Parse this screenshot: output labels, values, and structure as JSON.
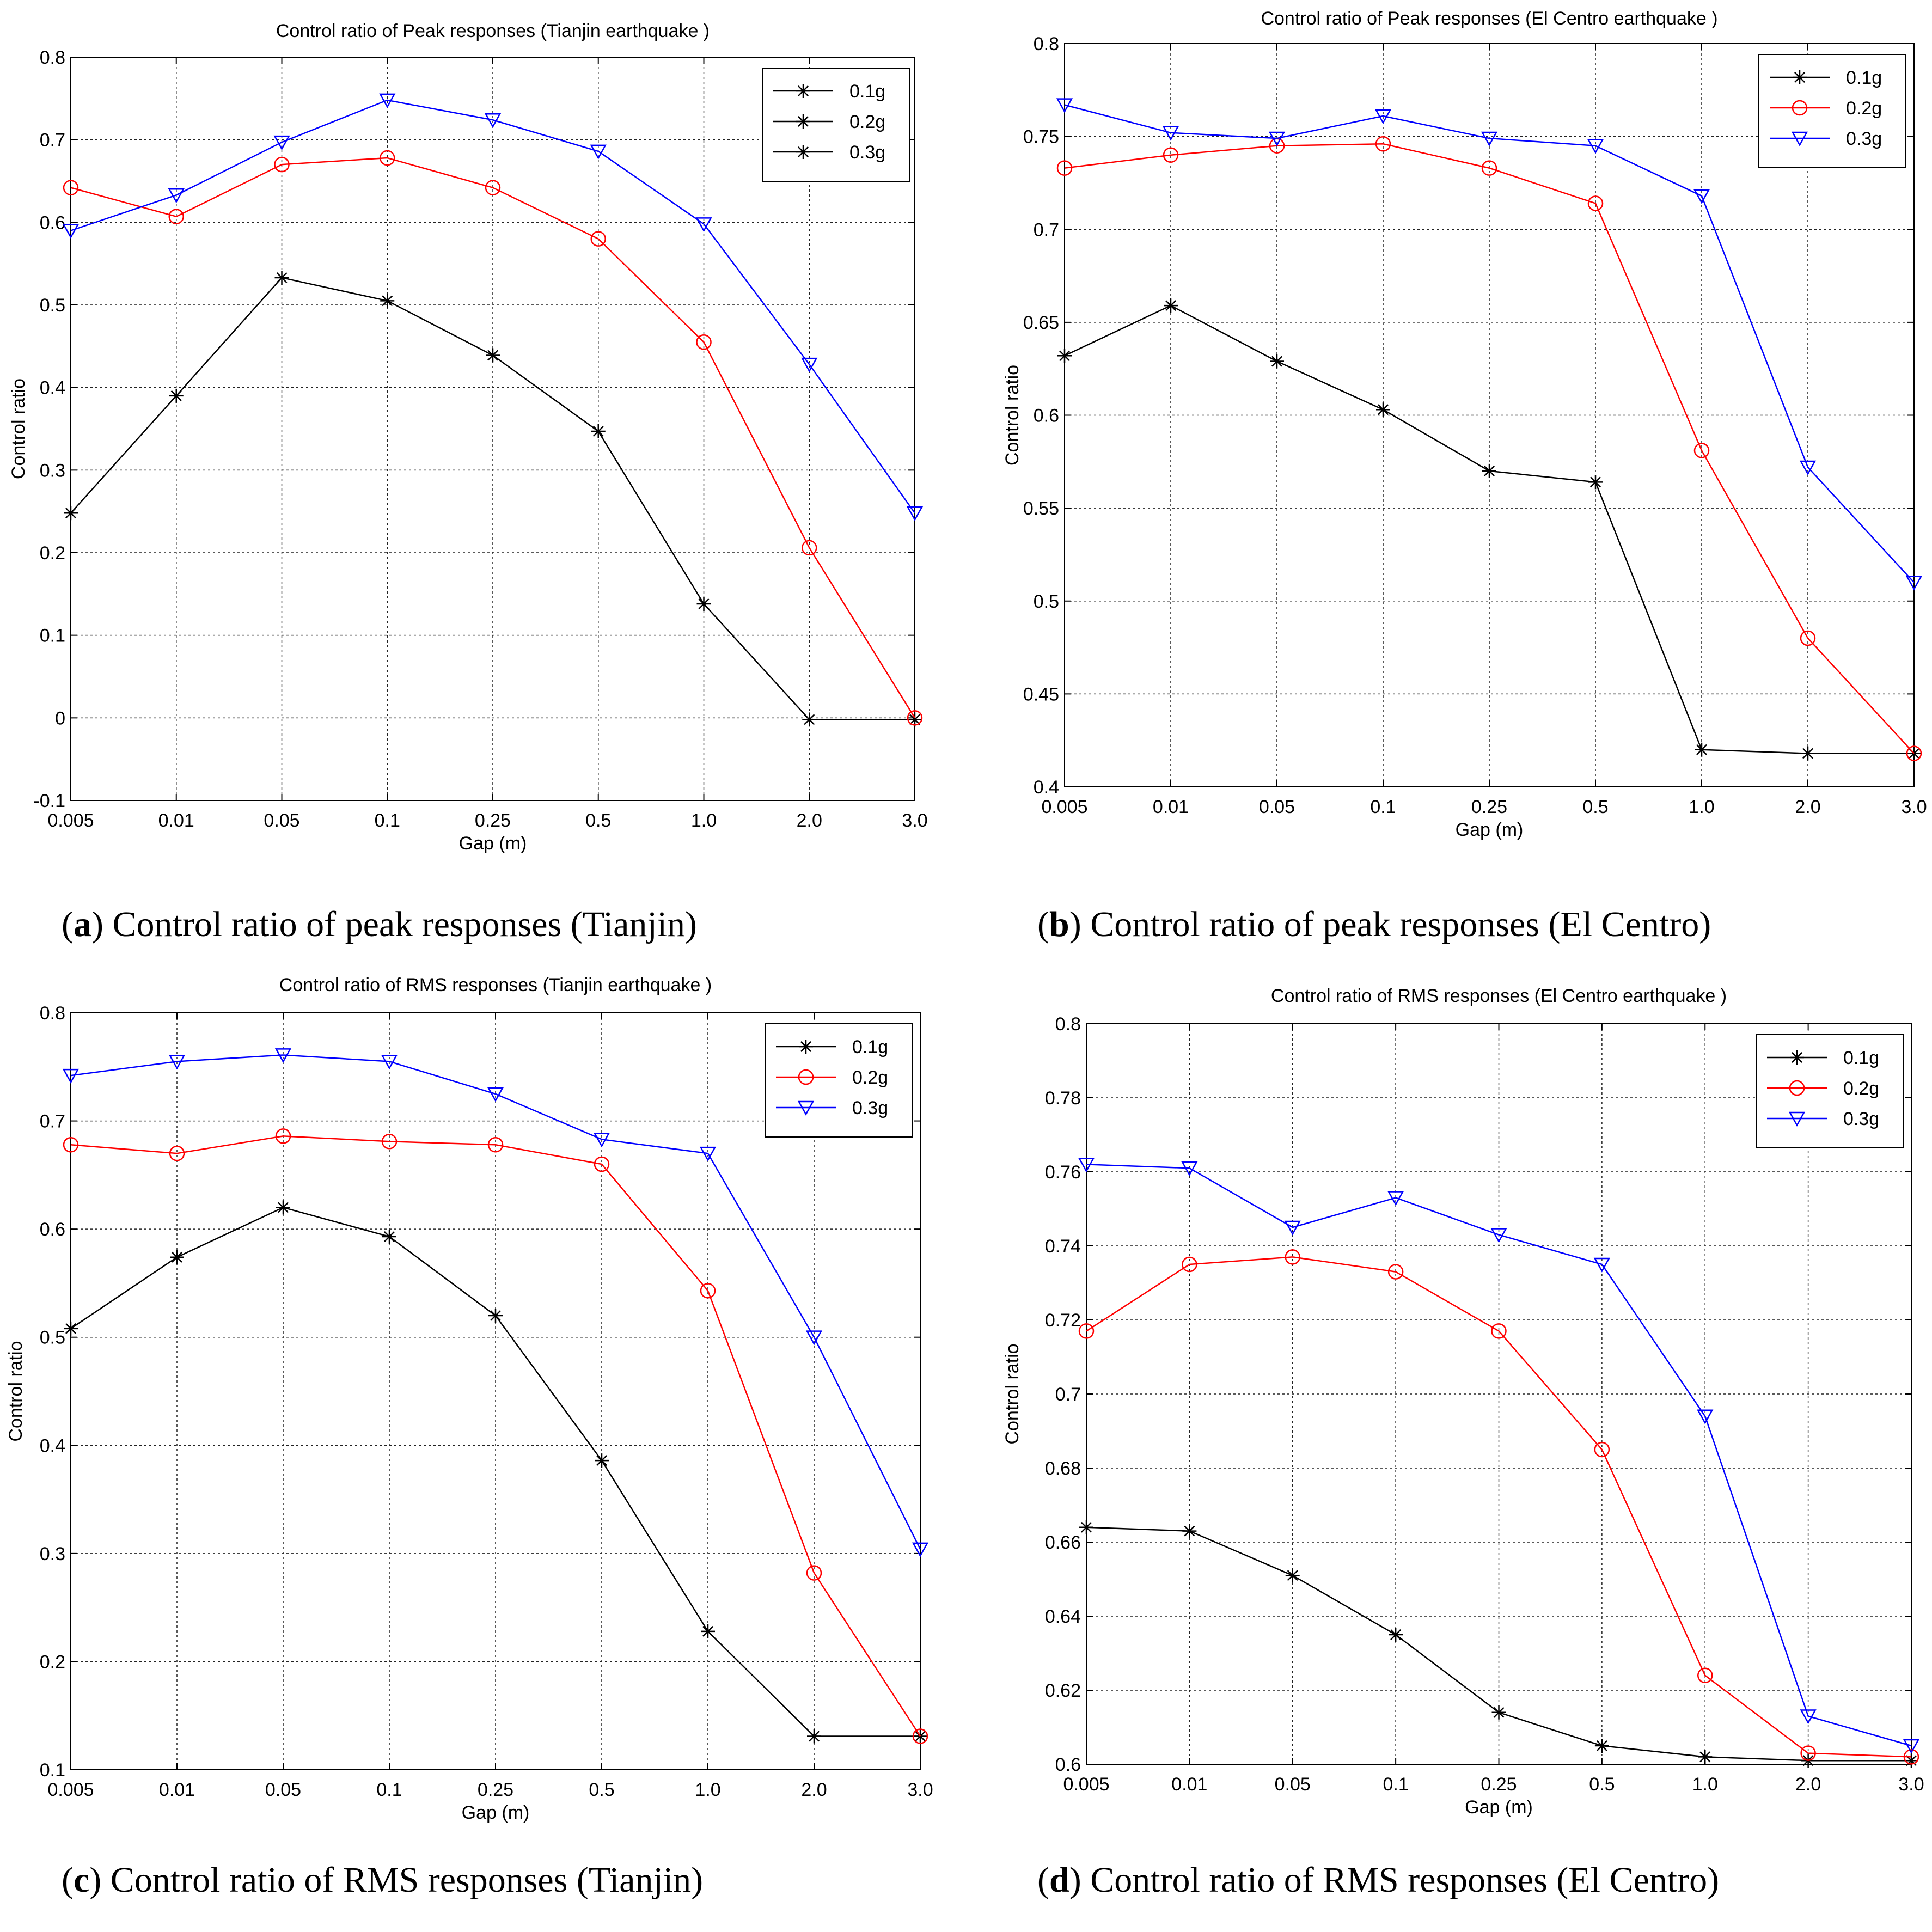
{
  "chart_data": [
    {
      "id": "a",
      "type": "line",
      "title": "Control ratio of Peak responses (Tianjin earthquake )",
      "xlabel": "Gap (m)",
      "ylabel": "Control ratio",
      "categories": [
        "0.005",
        "0.01",
        "0.05",
        "0.1",
        "0.25",
        "0.5",
        "1.0",
        "2.0",
        "3.0"
      ],
      "ylim": [
        -0.1,
        0.8
      ],
      "yticks": [
        -0.1,
        0,
        0.1,
        0.2,
        0.3,
        0.4,
        0.5,
        0.6,
        0.7,
        0.8
      ],
      "ytick_labels": [
        "-0.1",
        "0",
        "0.1",
        "0.2",
        "0.3",
        "0.4",
        "0.5",
        "0.6",
        "0.7",
        "0.8"
      ],
      "grid": true,
      "legend_position": "top-right",
      "series": [
        {
          "name": "0.1g",
          "color": "#000000",
          "marker": "star",
          "legend_color": "#000000",
          "legend_marker": "star",
          "values": [
            0.248,
            0.39,
            0.533,
            0.505,
            0.439,
            0.347,
            0.138,
            -0.002,
            -0.002
          ]
        },
        {
          "name": "0.2g",
          "color": "#ff0000",
          "marker": "circle",
          "legend_color": "#000000",
          "legend_marker": "star",
          "values": [
            0.642,
            0.607,
            0.67,
            0.678,
            0.642,
            0.58,
            0.455,
            0.206,
            0.0
          ]
        },
        {
          "name": "0.3g",
          "color": "#0000ff",
          "marker": "triangle",
          "legend_color": "#000000",
          "legend_marker": "star",
          "values": [
            0.59,
            0.633,
            0.697,
            0.748,
            0.724,
            0.686,
            0.598,
            0.428,
            0.248
          ]
        }
      ]
    },
    {
      "id": "b",
      "type": "line",
      "title": "Control ratio of Peak responses (El Centro earthquake )",
      "xlabel": "Gap (m)",
      "ylabel": "Control ratio",
      "categories": [
        "0.005",
        "0.01",
        "0.05",
        "0.1",
        "0.25",
        "0.5",
        "1.0",
        "2.0",
        "3.0"
      ],
      "ylim": [
        0.4,
        0.8
      ],
      "yticks": [
        0.4,
        0.45,
        0.5,
        0.55,
        0.6,
        0.65,
        0.7,
        0.75,
        0.8
      ],
      "ytick_labels": [
        "0.4",
        "0.45",
        "0.5",
        "0.55",
        "0.6",
        "0.65",
        "0.7",
        "0.75",
        "0.8"
      ],
      "grid": true,
      "legend_position": "top-right",
      "series": [
        {
          "name": "0.1g",
          "color": "#000000",
          "marker": "star",
          "legend_color": "#000000",
          "legend_marker": "star",
          "values": [
            0.632,
            0.659,
            0.629,
            0.603,
            0.57,
            0.564,
            0.42,
            0.418,
            0.418
          ]
        },
        {
          "name": "0.2g",
          "color": "#ff0000",
          "marker": "circle",
          "legend_color": "#ff0000",
          "legend_marker": "circle",
          "values": [
            0.733,
            0.74,
            0.745,
            0.746,
            0.733,
            0.714,
            0.581,
            0.48,
            0.418
          ]
        },
        {
          "name": "0.3g",
          "color": "#0000ff",
          "marker": "triangle",
          "legend_color": "#0000ff",
          "legend_marker": "triangle",
          "values": [
            0.767,
            0.752,
            0.749,
            0.761,
            0.749,
            0.745,
            0.718,
            0.572,
            0.51
          ]
        }
      ]
    },
    {
      "id": "c",
      "type": "line",
      "title": "Control ratio of RMS responses (Tianjin earthquake )",
      "xlabel": "Gap (m)",
      "ylabel": "Control ratio",
      "categories": [
        "0.005",
        "0.01",
        "0.05",
        "0.1",
        "0.25",
        "0.5",
        "1.0",
        "2.0",
        "3.0"
      ],
      "ylim": [
        0.1,
        0.8
      ],
      "yticks": [
        0.1,
        0.2,
        0.3,
        0.4,
        0.5,
        0.6,
        0.7,
        0.8
      ],
      "ytick_labels": [
        "0.1",
        "0.2",
        "0.3",
        "0.4",
        "0.5",
        "0.6",
        "0.7",
        "0.8"
      ],
      "grid": true,
      "legend_position": "top-right",
      "series": [
        {
          "name": "0.1g",
          "color": "#000000",
          "marker": "star",
          "legend_color": "#000000",
          "legend_marker": "star",
          "values": [
            0.508,
            0.574,
            0.62,
            0.593,
            0.52,
            0.386,
            0.228,
            0.131,
            0.131
          ]
        },
        {
          "name": "0.2g",
          "color": "#ff0000",
          "marker": "circle",
          "legend_color": "#ff0000",
          "legend_marker": "circle",
          "values": [
            0.678,
            0.67,
            0.686,
            0.681,
            0.678,
            0.66,
            0.543,
            0.282,
            0.131
          ]
        },
        {
          "name": "0.3g",
          "color": "#0000ff",
          "marker": "triangle",
          "legend_color": "#0000ff",
          "legend_marker": "triangle",
          "values": [
            0.742,
            0.755,
            0.761,
            0.755,
            0.725,
            0.683,
            0.67,
            0.5,
            0.304
          ]
        }
      ]
    },
    {
      "id": "d",
      "type": "line",
      "title": "Control ratio of RMS responses (El Centro earthquake )",
      "xlabel": "Gap (m)",
      "ylabel": "Control ratio",
      "categories": [
        "0.005",
        "0.01",
        "0.05",
        "0.1",
        "0.25",
        "0.5",
        "1.0",
        "2.0",
        "3.0"
      ],
      "ylim": [
        0.6,
        0.8
      ],
      "yticks": [
        0.6,
        0.62,
        0.64,
        0.66,
        0.68,
        0.7,
        0.72,
        0.74,
        0.76,
        0.78,
        0.8
      ],
      "ytick_labels": [
        "0.6",
        "0.62",
        "0.64",
        "0.66",
        "0.68",
        "0.7",
        "0.72",
        "0.74",
        "0.76",
        "0.78",
        "0.8"
      ],
      "grid": true,
      "legend_position": "top-right",
      "series": [
        {
          "name": "0.1g",
          "color": "#000000",
          "marker": "star",
          "legend_color": "#000000",
          "legend_marker": "star",
          "values": [
            0.664,
            0.663,
            0.651,
            0.635,
            0.614,
            0.605,
            0.602,
            0.601,
            0.601
          ]
        },
        {
          "name": "0.2g",
          "color": "#ff0000",
          "marker": "circle",
          "legend_color": "#ff0000",
          "legend_marker": "circle",
          "values": [
            0.717,
            0.735,
            0.737,
            0.733,
            0.717,
            0.685,
            0.624,
            0.603,
            0.602
          ]
        },
        {
          "name": "0.3g",
          "color": "#0000ff",
          "marker": "triangle",
          "legend_color": "#0000ff",
          "legend_marker": "triangle",
          "values": [
            0.762,
            0.761,
            0.745,
            0.753,
            0.743,
            0.735,
            0.694,
            0.613,
            0.605
          ]
        }
      ]
    }
  ],
  "captions": {
    "a": {
      "letter": "a",
      "text": " Control ratio of peak responses (Tianjin)"
    },
    "b": {
      "letter": "b",
      "text": " Control ratio of peak responses (El Centro)"
    },
    "c": {
      "letter": "c",
      "text": " Control ratio of RMS responses (Tianjin)"
    },
    "d": {
      "letter": "d",
      "text": " Control ratio of RMS responses (El Centro)"
    }
  }
}
